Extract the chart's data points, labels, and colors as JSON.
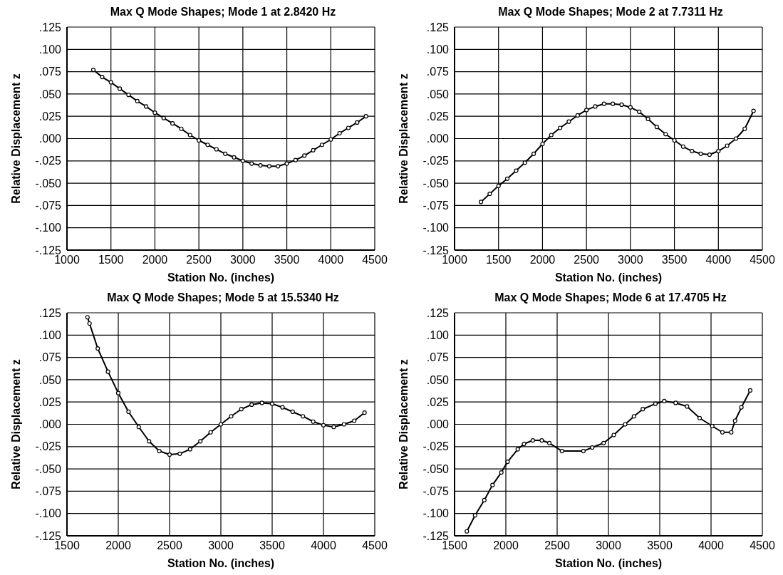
{
  "chart_data": [
    {
      "type": "line",
      "title": "Max Q Mode Shapes; Mode 1 at 2.8420 Hz",
      "xlabel": "Station No. (inches)",
      "ylabel": "Relative Displacement  z",
      "grid": true,
      "marker": "circle",
      "line_style": "solid",
      "xlim": [
        1000,
        4500
      ],
      "xticks": [
        1000,
        1500,
        2000,
        2500,
        3000,
        3500,
        4000,
        4500
      ],
      "ylim": [
        -0.125,
        0.125
      ],
      "yticks": [
        {
          "value": -0.125,
          "label": "-.125"
        },
        {
          "value": -0.1,
          "label": "-.100"
        },
        {
          "value": -0.075,
          "label": "-.075"
        },
        {
          "value": -0.05,
          "label": "-.050"
        },
        {
          "value": -0.025,
          "label": "-.025"
        },
        {
          "value": 0,
          "label": ".000"
        },
        {
          "value": 0.025,
          "label": ".025"
        },
        {
          "value": 0.05,
          "label": ".050"
        },
        {
          "value": 0.075,
          "label": ".075"
        },
        {
          "value": 0.1,
          "label": ".100"
        },
        {
          "value": 0.125,
          "label": ".125"
        }
      ],
      "x": [
        1300,
        1400,
        1500,
        1600,
        1700,
        1800,
        1900,
        2000,
        2100,
        2200,
        2300,
        2400,
        2500,
        2600,
        2700,
        2800,
        2900,
        3000,
        3100,
        3200,
        3300,
        3400,
        3500,
        3600,
        3700,
        3800,
        3900,
        4000,
        4100,
        4200,
        4300,
        4400
      ],
      "series": [
        {
          "color": "#000000",
          "values": [
            0.077,
            0.069,
            0.063,
            0.056,
            0.049,
            0.042,
            0.036,
            0.029,
            0.023,
            0.017,
            0.011,
            0.004,
            -0.002,
            -0.007,
            -0.012,
            -0.017,
            -0.021,
            -0.025,
            -0.028,
            -0.03,
            -0.031,
            -0.031,
            -0.028,
            -0.024,
            -0.019,
            -0.013,
            -0.007,
            -0.001,
            0.006,
            0.012,
            0.018,
            0.025
          ]
        }
      ]
    },
    {
      "type": "line",
      "title": "Max Q Mode Shapes; Mode 2 at 7.7311 Hz",
      "xlabel": "Station No. (inches)",
      "ylabel": "Relative Displacement  z",
      "grid": true,
      "marker": "circle",
      "line_style": "solid",
      "xlim": [
        1000,
        4500
      ],
      "xticks": [
        1000,
        1500,
        2000,
        2500,
        3000,
        3500,
        4000,
        4500
      ],
      "ylim": [
        -0.125,
        0.125
      ],
      "yticks": [
        {
          "value": -0.125,
          "label": "-.125"
        },
        {
          "value": -0.1,
          "label": "-.100"
        },
        {
          "value": -0.075,
          "label": "-.075"
        },
        {
          "value": -0.05,
          "label": "-.050"
        },
        {
          "value": -0.025,
          "label": "-.025"
        },
        {
          "value": 0,
          "label": ".000"
        },
        {
          "value": 0.025,
          "label": ".025"
        },
        {
          "value": 0.05,
          "label": ".050"
        },
        {
          "value": 0.075,
          "label": ".075"
        },
        {
          "value": 0.1,
          "label": ".100"
        },
        {
          "value": 0.125,
          "label": ".125"
        }
      ],
      "x": [
        1300,
        1400,
        1500,
        1600,
        1700,
        1800,
        1900,
        2000,
        2100,
        2200,
        2300,
        2400,
        2500,
        2600,
        2700,
        2800,
        2900,
        3000,
        3100,
        3200,
        3300,
        3400,
        3500,
        3600,
        3700,
        3800,
        3900,
        4000,
        4100,
        4200,
        4300,
        4400
      ],
      "series": [
        {
          "color": "#000000",
          "values": [
            -0.071,
            -0.062,
            -0.053,
            -0.045,
            -0.036,
            -0.027,
            -0.017,
            -0.006,
            0.004,
            0.012,
            0.019,
            0.026,
            0.032,
            0.036,
            0.039,
            0.039,
            0.038,
            0.035,
            0.03,
            0.022,
            0.013,
            0.005,
            -0.002,
            -0.009,
            -0.014,
            -0.017,
            -0.018,
            -0.014,
            -0.008,
            0.0,
            0.011,
            0.031
          ]
        }
      ]
    },
    {
      "type": "line",
      "title": "Max Q Mode Shapes; Mode 5 at 15.5340 Hz",
      "xlabel": "Station No. (inches)",
      "ylabel": "Relative Displacement  z",
      "grid": true,
      "marker": "circle",
      "line_style": "solid",
      "xlim": [
        1500,
        4500
      ],
      "xticks": [
        1500,
        2000,
        2500,
        3000,
        3500,
        4000,
        4500
      ],
      "ylim": [
        -0.125,
        0.125
      ],
      "yticks": [
        {
          "value": -0.125,
          "label": "-.125"
        },
        {
          "value": -0.1,
          "label": "-.100"
        },
        {
          "value": -0.075,
          "label": "-.075"
        },
        {
          "value": -0.05,
          "label": "-.050"
        },
        {
          "value": -0.025,
          "label": "-.025"
        },
        {
          "value": 0,
          "label": ".000"
        },
        {
          "value": 0.025,
          "label": ".025"
        },
        {
          "value": 0.05,
          "label": ".050"
        },
        {
          "value": 0.075,
          "label": ".075"
        },
        {
          "value": 0.1,
          "label": ".100"
        },
        {
          "value": 0.125,
          "label": ".125"
        }
      ],
      "x": [
        1700,
        1720,
        1800,
        1900,
        2000,
        2100,
        2200,
        2300,
        2400,
        2500,
        2600,
        2700,
        2800,
        2900,
        3000,
        3100,
        3200,
        3300,
        3400,
        3500,
        3600,
        3700,
        3800,
        3900,
        4000,
        4100,
        4200,
        4300,
        4400
      ],
      "series": [
        {
          "color": "#000000",
          "values": [
            0.12,
            0.113,
            0.085,
            0.059,
            0.035,
            0.014,
            -0.003,
            -0.019,
            -0.03,
            -0.034,
            -0.033,
            -0.028,
            -0.019,
            -0.009,
            0.0,
            0.009,
            0.017,
            0.022,
            0.024,
            0.023,
            0.019,
            0.014,
            0.009,
            0.003,
            -0.001,
            -0.003,
            0.0,
            0.004,
            0.013
          ]
        }
      ]
    },
    {
      "type": "line",
      "title": "Max Q Mode Shapes; Mode 6 at 17.4705 Hz",
      "xlabel": "Station No. (inches)",
      "ylabel": "Relative Displacement  z",
      "grid": true,
      "marker": "circle",
      "line_style": "solid",
      "xlim": [
        1500,
        4500
      ],
      "xticks": [
        1500,
        2000,
        2500,
        3000,
        3500,
        4000,
        4500
      ],
      "ylim": [
        -0.125,
        0.125
      ],
      "yticks": [
        {
          "value": -0.125,
          "label": "-.125"
        },
        {
          "value": -0.1,
          "label": "-.100"
        },
        {
          "value": -0.075,
          "label": "-.075"
        },
        {
          "value": -0.05,
          "label": "-.050"
        },
        {
          "value": -0.025,
          "label": "-.025"
        },
        {
          "value": 0,
          "label": ".000"
        },
        {
          "value": 0.025,
          "label": ".025"
        },
        {
          "value": 0.05,
          "label": ".050"
        },
        {
          "value": 0.075,
          "label": ".075"
        },
        {
          "value": 0.1,
          "label": ".100"
        },
        {
          "value": 0.125,
          "label": ".125"
        }
      ],
      "x": [
        1620,
        1700,
        1790,
        1870,
        1956,
        2017,
        2116,
        2177,
        2263,
        2350,
        2424,
        2547,
        2756,
        2842,
        2953,
        3052,
        3163,
        3249,
        3335,
        3458,
        3544,
        3655,
        3766,
        3889,
        4012,
        4111,
        4197,
        4234,
        4296,
        4382
      ],
      "series": [
        {
          "color": "#000000",
          "values": [
            -0.12,
            -0.102,
            -0.085,
            -0.068,
            -0.054,
            -0.042,
            -0.028,
            -0.022,
            -0.018,
            -0.018,
            -0.021,
            -0.03,
            -0.03,
            -0.026,
            -0.021,
            -0.012,
            0.0,
            0.009,
            0.017,
            0.023,
            0.026,
            0.024,
            0.02,
            0.007,
            -0.002,
            -0.009,
            -0.009,
            0.004,
            0.019,
            0.038
          ]
        }
      ]
    }
  ]
}
